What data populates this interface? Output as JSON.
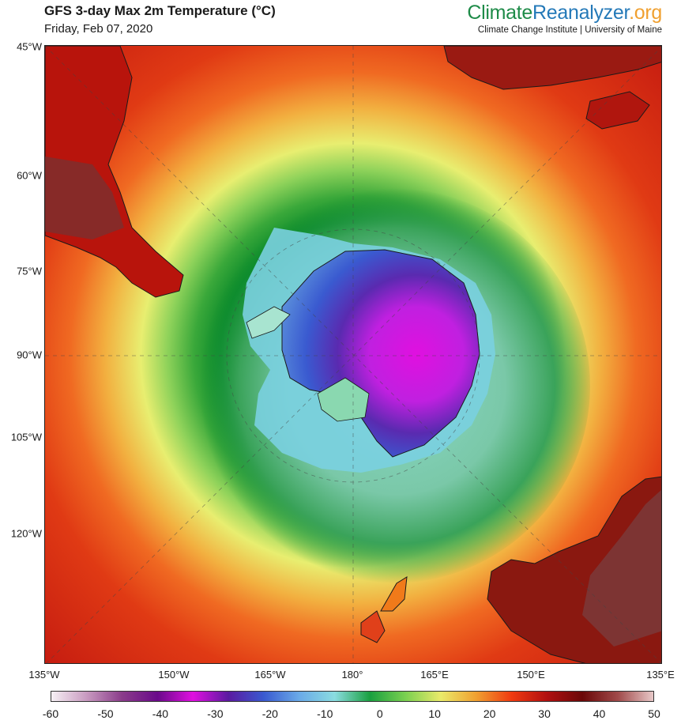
{
  "header": {
    "title": "GFS 3-day Max 2m Temperature (°C)",
    "date": "Friday, Feb 07, 2020"
  },
  "brand": {
    "logo_part1": "Climate",
    "logo_part2": "Reanalyzer",
    "logo_part3": ".org",
    "institution": "Climate Change Institute | University of Maine"
  },
  "map": {
    "projection_center": "South Pole",
    "left_axis_labels": [
      "45°W",
      "60°W",
      "75°W",
      "90°W",
      "105°W",
      "120°W"
    ],
    "bottom_axis_labels": [
      "135°W",
      "150°W",
      "165°W",
      "180°",
      "165°E",
      "150°E",
      "135°E"
    ],
    "landmasses": [
      "South America",
      "Africa",
      "Antarctica",
      "Australia",
      "New Zealand"
    ]
  },
  "colorbar": {
    "ticks": [
      "-60",
      "-50",
      "-40",
      "-30",
      "-20",
      "-10",
      "0",
      "10",
      "20",
      "30",
      "40",
      "50"
    ],
    "min": -60,
    "max": 50,
    "colors": [
      "#f6f0f4",
      "#c89ac0",
      "#8a3c8a",
      "#6a0a8a",
      "#e010e0",
      "#5a1aa0",
      "#3a5ad0",
      "#6aaae8",
      "#8adce0",
      "#1aa040",
      "#7ad050",
      "#eaea6a",
      "#f0a030",
      "#f03a10",
      "#b01010",
      "#6a0808",
      "#a04a4a",
      "#e8c8c8"
    ]
  }
}
